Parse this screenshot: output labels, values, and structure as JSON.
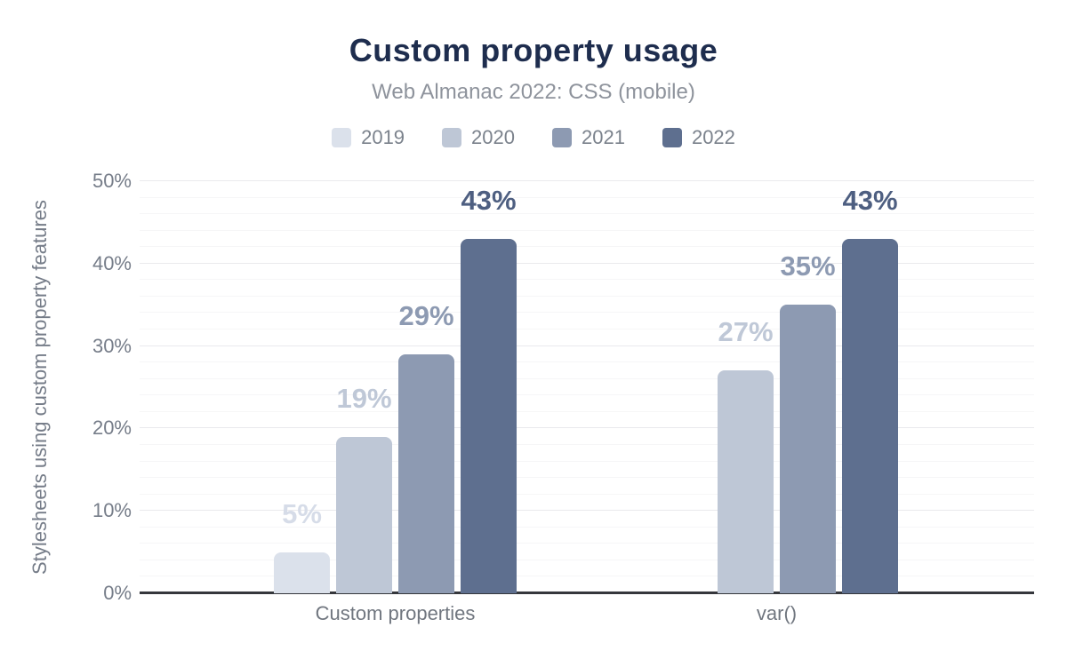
{
  "chart_data": {
    "type": "bar",
    "title": "Custom property usage",
    "subtitle": "Web Almanac 2022: CSS (mobile)",
    "ylabel": "Stylesheets using custom property features",
    "xlabel": "",
    "categories": [
      "Custom properties",
      "var()"
    ],
    "series": [
      {
        "name": "2019",
        "color": "#dbe1eb",
        "label_color": "#d6dce8",
        "values": [
          5,
          null
        ]
      },
      {
        "name": "2020",
        "color": "#bec7d6",
        "label_color": "#bfc8d7",
        "values": [
          19,
          27
        ]
      },
      {
        "name": "2021",
        "color": "#8d9ab2",
        "label_color": "#8d9ab2",
        "values": [
          29,
          35
        ]
      },
      {
        "name": "2022",
        "color": "#5e6f8f",
        "label_color": "#4e5f81",
        "values": [
          43,
          43
        ]
      }
    ],
    "value_label_suffix": "%",
    "ylim": [
      0,
      50
    ],
    "ytick_labels": [
      "0%",
      "10%",
      "20%",
      "30%",
      "40%",
      "50%"
    ],
    "ytick_step_major": 10,
    "ytick_step_minor": 2,
    "grid": true,
    "legend_position": "top",
    "colors": {
      "title": "#1e2d4e",
      "subtitle": "#8e939c",
      "axis_line": "#35373c",
      "tick_text": "#767d89",
      "background": "#ffffff"
    }
  }
}
